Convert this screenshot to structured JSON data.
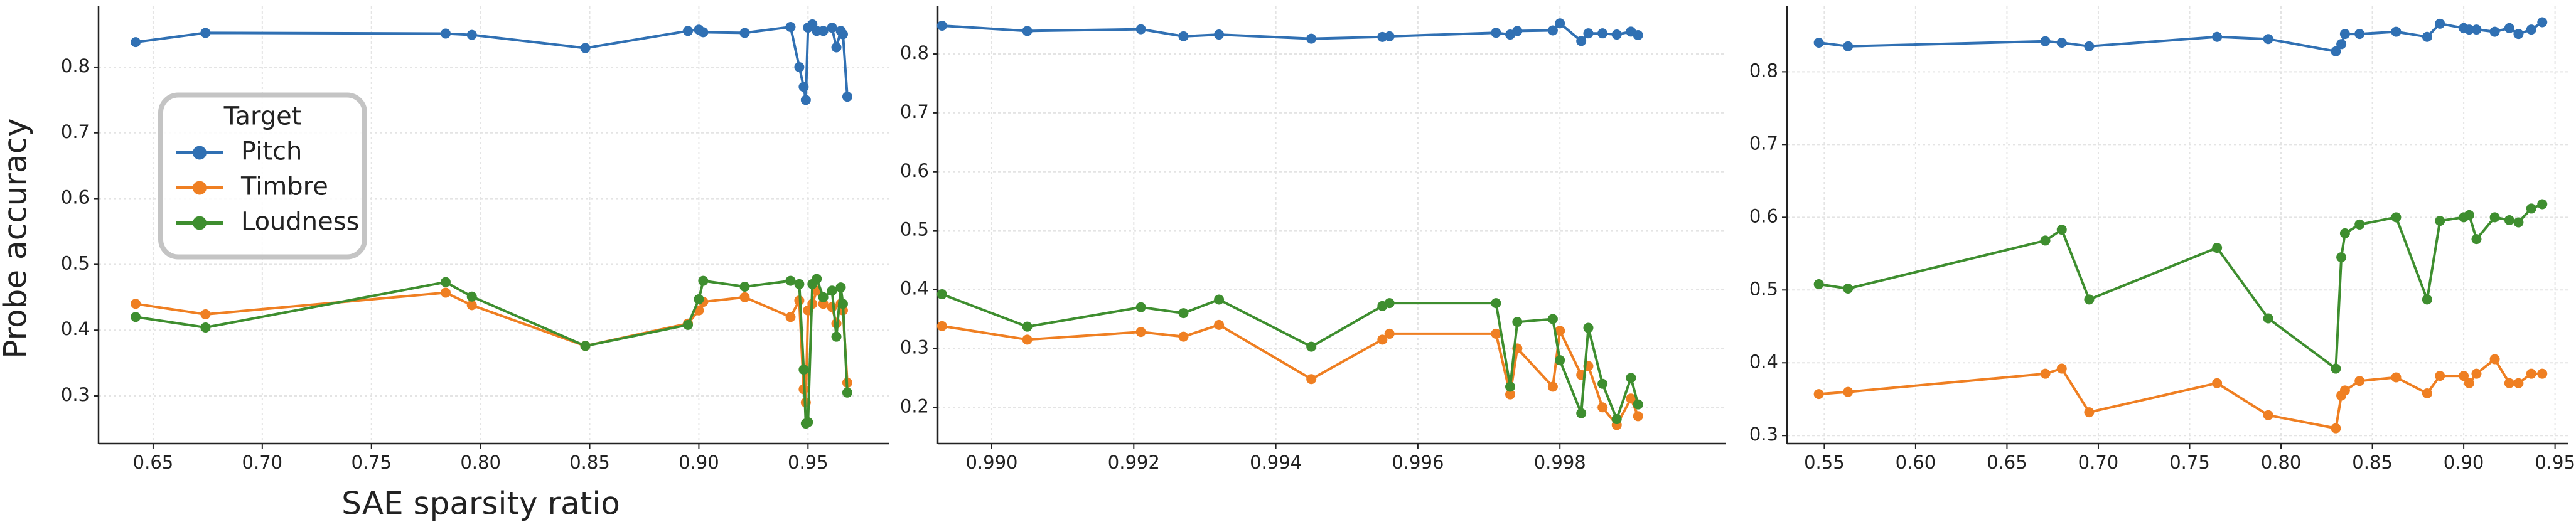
{
  "chart_data": [
    {
      "type": "line",
      "y_label": "Probe accuracy",
      "x_label": "SAE sparsity ratio",
      "legend": {
        "title": "Target",
        "loc": "center left"
      },
      "grid": true,
      "xlim": [
        0.625,
        0.987
      ],
      "ylim": [
        0.2275,
        0.8925
      ],
      "xticks": [
        0.65,
        {
          "value": 0.7,
          "label": "0.70"
        },
        0.75,
        {
          "value": 0.8,
          "label": "0.80"
        },
        0.85,
        {
          "value": 0.9,
          "label": "0.90"
        },
        0.95
      ],
      "yticks": [
        0.3,
        0.4,
        0.5,
        0.6,
        0.7,
        0.8
      ],
      "x": [
        0.642,
        0.674,
        0.784,
        0.796,
        0.848,
        0.895,
        0.9,
        0.902,
        0.921,
        0.942,
        0.946,
        0.948,
        0.949,
        0.95,
        0.952,
        0.954,
        0.957,
        0.961,
        0.963,
        0.965,
        0.966,
        0.968
      ],
      "series": [
        {
          "name": "Pitch",
          "color": "#3070b3",
          "values": [
            0.838,
            0.852,
            0.851,
            0.849,
            0.829,
            0.855,
            0.857,
            0.853,
            0.852,
            0.861,
            0.8,
            0.77,
            0.75,
            0.86,
            0.865,
            0.855,
            0.855,
            0.86,
            0.83,
            0.855,
            0.85,
            0.755
          ]
        },
        {
          "name": "Timbre",
          "color": "#ef7f22",
          "values": [
            0.44,
            0.424,
            0.457,
            0.438,
            0.376,
            0.41,
            0.43,
            0.443,
            0.45,
            0.42,
            0.445,
            0.31,
            0.29,
            0.43,
            0.44,
            0.46,
            0.44,
            0.435,
            0.41,
            0.44,
            0.43,
            0.32
          ]
        },
        {
          "name": "Loudness",
          "color": "#3e8e2f",
          "values": [
            0.42,
            0.404,
            0.473,
            0.451,
            0.376,
            0.408,
            0.447,
            0.475,
            0.466,
            0.475,
            0.47,
            0.34,
            0.258,
            0.26,
            0.47,
            0.478,
            0.45,
            0.46,
            0.39,
            0.465,
            0.44,
            0.305
          ]
        }
      ]
    },
    {
      "type": "line",
      "grid": true,
      "xlim": [
        0.98924,
        1.00034
      ],
      "ylim": [
        0.1385,
        0.881
      ],
      "xticks": [
        {
          "value": 0.99,
          "label": "0.990"
        },
        0.992,
        0.994,
        0.996,
        0.998
      ],
      "yticks": [
        0.2,
        0.3,
        0.4,
        0.5,
        0.6,
        0.7,
        0.8
      ],
      "x": [
        0.9893,
        0.9905,
        0.9921,
        0.9927,
        0.9932,
        0.9945,
        0.9955,
        0.9956,
        0.9971,
        0.9973,
        0.9974,
        0.9979,
        0.998,
        0.9983,
        0.9984,
        0.9986,
        0.9988,
        0.999,
        0.9991
      ],
      "series": [
        {
          "color": "#3070b3",
          "values": [
            0.848,
            0.839,
            0.842,
            0.83,
            0.833,
            0.826,
            0.829,
            0.83,
            0.836,
            0.833,
            0.839,
            0.84,
            0.852,
            0.822,
            0.835,
            0.835,
            0.833,
            0.838,
            0.832
          ]
        },
        {
          "color": "#ef7f22",
          "values": [
            0.338,
            0.315,
            0.328,
            0.32,
            0.34,
            0.248,
            0.315,
            0.325,
            0.325,
            0.222,
            0.3,
            0.235,
            0.33,
            0.255,
            0.27,
            0.2,
            0.17,
            0.215,
            0.185
          ]
        },
        {
          "color": "#3e8e2f",
          "values": [
            0.392,
            0.337,
            0.37,
            0.36,
            0.383,
            0.303,
            0.372,
            0.377,
            0.377,
            0.235,
            0.345,
            0.35,
            0.28,
            0.19,
            0.335,
            0.24,
            0.18,
            0.25,
            0.205
          ]
        }
      ]
    },
    {
      "type": "line",
      "grid": true,
      "xlim": [
        0.5296,
        0.957
      ],
      "ylim": [
        0.289,
        0.89
      ],
      "xticks": [
        0.55,
        {
          "value": 0.6,
          "label": "0.60"
        },
        0.65,
        {
          "value": 0.7,
          "label": "0.70"
        },
        0.75,
        {
          "value": 0.8,
          "label": "0.80"
        },
        0.85,
        {
          "value": 0.9,
          "label": "0.90"
        },
        0.95
      ],
      "yticks": [
        0.3,
        0.4,
        0.5,
        0.6,
        0.7,
        0.8
      ],
      "x": [
        0.547,
        0.563,
        0.671,
        0.68,
        0.695,
        0.765,
        0.793,
        0.83,
        0.833,
        0.835,
        0.843,
        0.863,
        0.88,
        0.887,
        0.9,
        0.903,
        0.907,
        0.917,
        0.925,
        0.93,
        0.937,
        0.943
      ],
      "series": [
        {
          "color": "#3070b3",
          "values": [
            0.84,
            0.835,
            0.842,
            0.84,
            0.835,
            0.848,
            0.845,
            0.828,
            0.838,
            0.852,
            0.852,
            0.855,
            0.848,
            0.866,
            0.86,
            0.858,
            0.858,
            0.855,
            0.86,
            0.852,
            0.858,
            0.868
          ]
        },
        {
          "color": "#ef7f22",
          "values": [
            0.357,
            0.36,
            0.385,
            0.392,
            0.332,
            0.372,
            0.328,
            0.31,
            0.355,
            0.362,
            0.375,
            0.38,
            0.358,
            0.382,
            0.382,
            0.372,
            0.385,
            0.405,
            0.372,
            0.372,
            0.385,
            0.385
          ]
        },
        {
          "color": "#3e8e2f",
          "values": [
            0.508,
            0.502,
            0.568,
            0.583,
            0.487,
            0.558,
            0.461,
            0.392,
            0.545,
            0.578,
            0.59,
            0.6,
            0.487,
            0.595,
            0.6,
            0.603,
            0.57,
            0.6,
            0.596,
            0.593,
            0.612,
            0.618
          ]
        }
      ]
    }
  ]
}
